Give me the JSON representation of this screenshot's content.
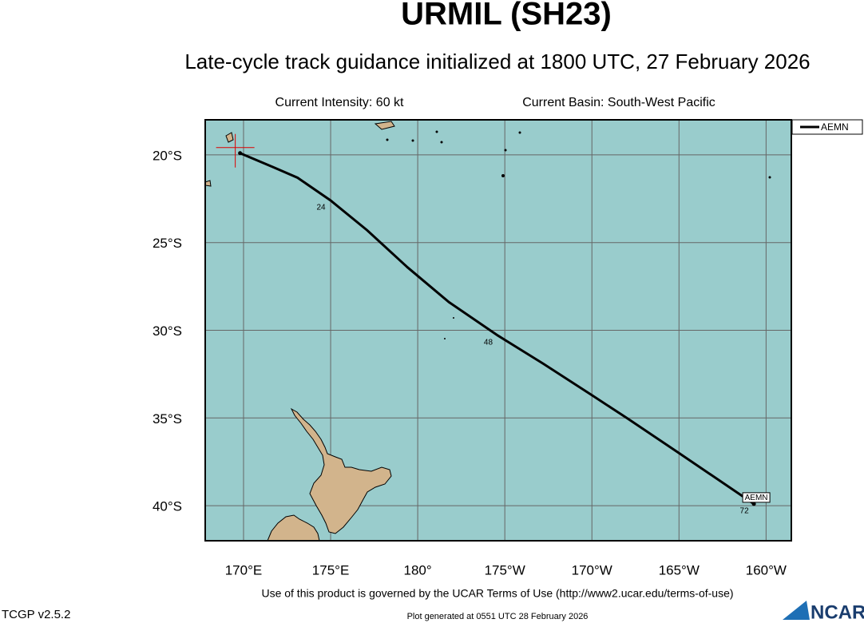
{
  "chart_data": {
    "type": "track-map",
    "title": "URMIL (SH23)",
    "subtitle": "Late-cycle track guidance initialized at 1800 UTC, 27 February 2026",
    "info_left": "Current Intensity: 60 kt",
    "info_right": "Current Basin: South-West Pacific",
    "footer_terms": "Use of this product is governed by the UCAR Terms of Use (http://www2.ucar.edu/terms-of-use)",
    "footer_version": "TCGP v2.5.2",
    "footer_generated": "Plot generated at 0551 UTC   28 February 2026",
    "logo": "NCAR",
    "xlim": [
      167.8,
      201.45
    ],
    "ylim": [
      -42,
      -18
    ],
    "xticks": [
      {
        "value": 170,
        "label": "170°E"
      },
      {
        "value": 175,
        "label": "175°E"
      },
      {
        "value": 180,
        "label": "180°"
      },
      {
        "value": 185,
        "label": "175°W"
      },
      {
        "value": 190,
        "label": "170°W"
      },
      {
        "value": 195,
        "label": "165°W"
      },
      {
        "value": 200,
        "label": "160°W"
      }
    ],
    "yticks": [
      {
        "value": -20,
        "label": "20°S"
      },
      {
        "value": -25,
        "label": "25°S"
      },
      {
        "value": -30,
        "label": "30°S"
      },
      {
        "value": -35,
        "label": "35°S"
      },
      {
        "value": -40,
        "label": "40°S"
      }
    ],
    "grid": true,
    "ocean_color": "#99cccc",
    "land_color": "#d2b48c",
    "series": [
      {
        "name": "AEMN",
        "color": "#000000",
        "x": [
          169.8,
          171.7,
          173.1,
          175.0,
          177.1,
          179.4,
          181.8,
          184.6,
          187.2,
          190.0,
          192.0,
          195.0,
          199.3
        ],
        "y": [
          -19.9,
          -20.7,
          -21.3,
          -22.6,
          -24.3,
          -26.4,
          -28.4,
          -30.3,
          -31.9,
          -33.7,
          -35.0,
          -37.0,
          -39.9
        ]
      }
    ],
    "tau_labels": [
      {
        "tau": 24,
        "lon": 175.0,
        "lat": -22.6
      },
      {
        "tau": 48,
        "lon": 184.6,
        "lat": -30.3
      },
      {
        "tau": 72,
        "lon": 199.3,
        "lat": -39.9
      }
    ],
    "legend": "top-right outside"
  }
}
